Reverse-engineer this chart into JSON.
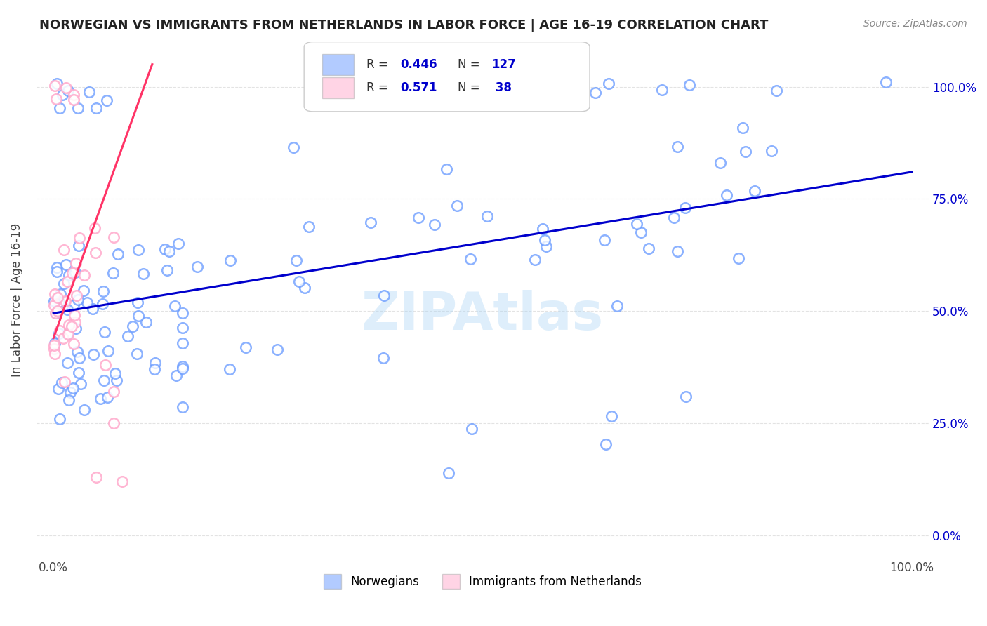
{
  "title": "NORWEGIAN VS IMMIGRANTS FROM NETHERLANDS IN LABOR FORCE | AGE 16-19 CORRELATION CHART",
  "source": "Source: ZipAtlas.com",
  "ylabel": "In Labor Force | Age 16-19",
  "xlim": [
    -0.02,
    1.02
  ],
  "ylim": [
    -0.05,
    1.1
  ],
  "yticks": [
    0.0,
    0.25,
    0.5,
    0.75,
    1.0
  ],
  "ytick_labels": [
    "0.0%",
    "25.0%",
    "50.0%",
    "75.0%",
    "100.0%"
  ],
  "blue_R": 0.446,
  "blue_N": 127,
  "pink_R": 0.571,
  "pink_N": 38,
  "blue_color": "#6699ff",
  "pink_color": "#ffaacc",
  "blue_line_color": "#0000cc",
  "pink_line_color": "#ff3366",
  "watermark": "ZIPAtlas",
  "legend_labels": [
    "Norwegians",
    "Immigrants from Netherlands"
  ],
  "background_color": "#ffffff",
  "grid_color": "#dddddd"
}
